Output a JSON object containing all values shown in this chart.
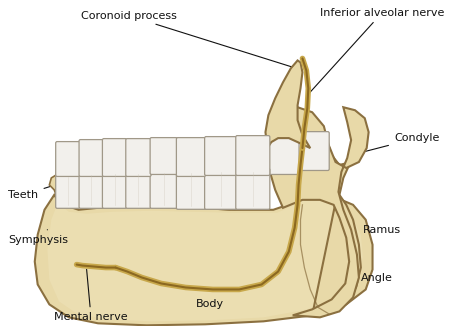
{
  "bg_color": "#ffffff",
  "bone_fill": "#e8d9a8",
  "bone_fill_light": "#f0e6c0",
  "bone_fill_dark": "#d4c07a",
  "bone_edge": "#8b7040",
  "tooth_fill": "#f2f0ec",
  "tooth_edge": "#a09888",
  "nerve_color": "#c8a84b",
  "nerve_color2": "#8b6820",
  "line_color": "#111111",
  "text_color": "#111111",
  "labels": {
    "coronoid_process": "Coronoid process",
    "inferior_alveolar_nerve": "Inferior alveolar nerve",
    "condyle": "Condyle",
    "teeth": "Teeth",
    "ramus": "Ramus",
    "symphysis": "Symphysis",
    "angle": "Angle",
    "body": "Body",
    "mental_nerve": "Mental nerve"
  },
  "figsize": [
    4.74,
    3.27
  ],
  "dpi": 100,
  "font_size": 8.0
}
